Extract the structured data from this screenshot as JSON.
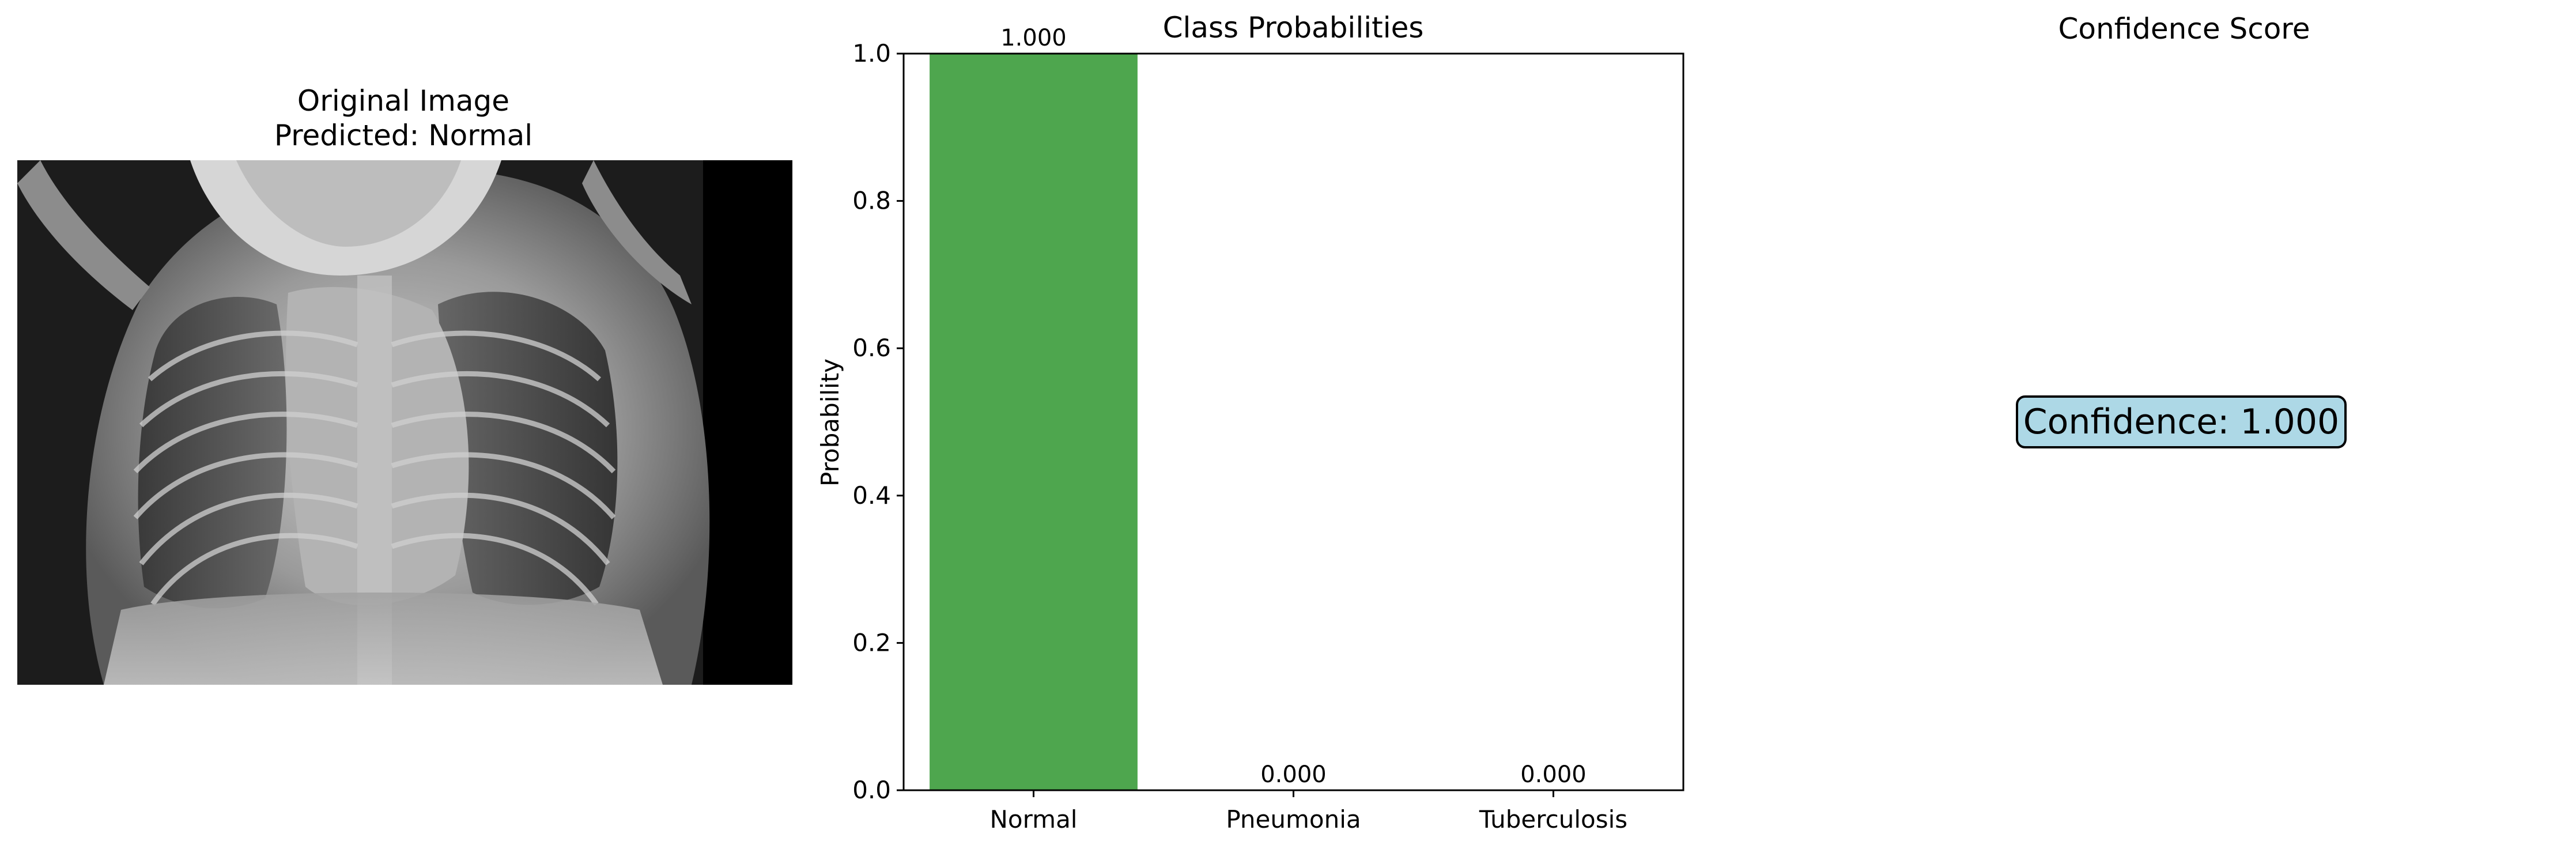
{
  "image_panel": {
    "title": "Original Image",
    "prediction": "Predicted: Normal"
  },
  "confidence_panel": {
    "title": "Confidence Score",
    "text": "Confidence: 1.000",
    "box_color": "#add8e6"
  },
  "chart_data": {
    "type": "bar",
    "title": "Class Probabilities",
    "xlabel": "",
    "ylabel": "Probability",
    "categories": [
      "Normal",
      "Pneumonia",
      "Tuberculosis"
    ],
    "values": [
      1.0,
      0.0,
      0.0
    ],
    "value_labels": [
      "1.000",
      "0.000",
      "0.000"
    ],
    "ylim": [
      0,
      1
    ],
    "yticks": [
      0.0,
      0.2,
      0.4,
      0.6,
      0.8,
      1.0
    ],
    "ytick_labels": [
      "0.0",
      "0.2",
      "0.4",
      "0.6",
      "0.8",
      "1.0"
    ],
    "bar_color": "#4ea64e",
    "grid": false
  }
}
